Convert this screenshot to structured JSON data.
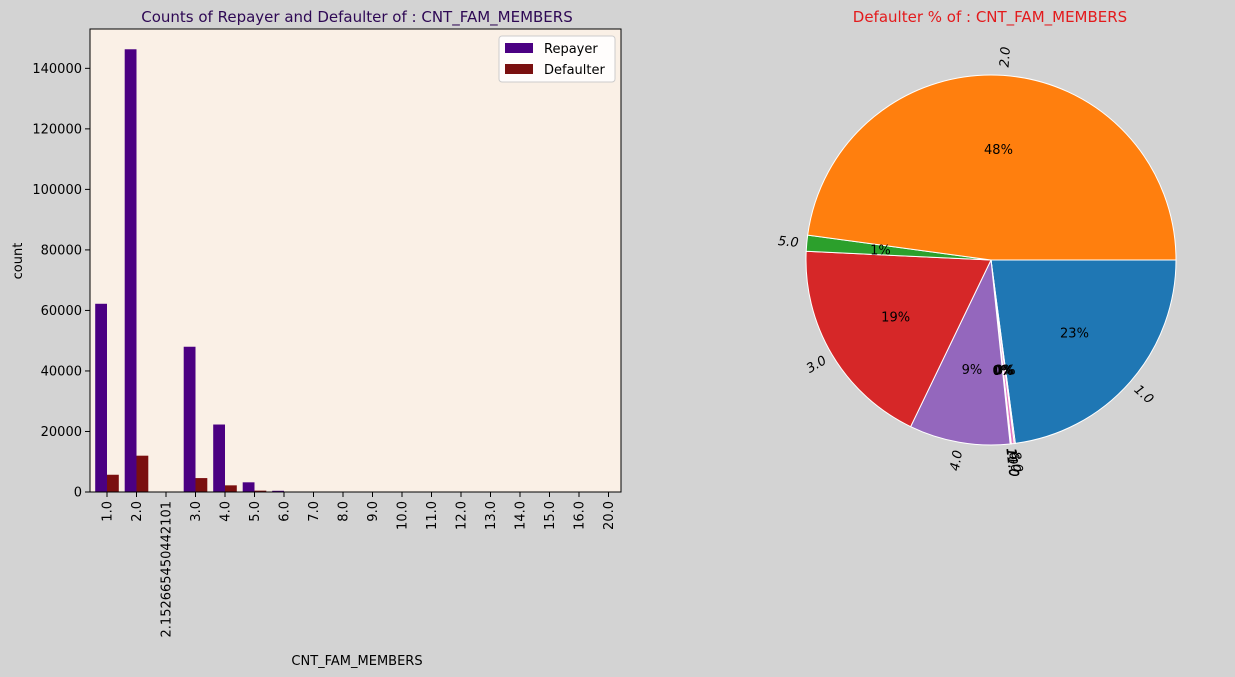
{
  "chart_data": [
    {
      "type": "bar",
      "title": "Counts of Repayer and Defaulter of : CNT_FAM_MEMBERS",
      "xlabel": "CNT_FAM_MEMBERS",
      "ylabel": "count",
      "categories": [
        "1.0",
        "2.0",
        "2.152665450442101",
        "3.0",
        "4.0",
        "5.0",
        "6.0",
        "7.0",
        "8.0",
        "9.0",
        "10.0",
        "11.0",
        "12.0",
        "13.0",
        "14.0",
        "15.0",
        "16.0",
        "20.0"
      ],
      "series": [
        {
          "name": "Repayer",
          "color": "#4b0082",
          "values": [
            62200,
            146300,
            2,
            48000,
            22300,
            3200,
            400,
            70,
            18,
            6,
            3,
            1,
            2,
            0,
            2,
            1,
            2,
            2
          ]
        },
        {
          "name": "Defaulter",
          "color": "#7a0f0f",
          "values": [
            5700,
            12000,
            0,
            4600,
            2200,
            450,
            60,
            10,
            2,
            2,
            0,
            1,
            0,
            1,
            0,
            0,
            0,
            0
          ]
        }
      ],
      "ylim": [
        0,
        153000
      ],
      "yticks": [
        0,
        20000,
        40000,
        60000,
        80000,
        100000,
        120000,
        140000
      ],
      "legend": "top-right",
      "grid": false,
      "background": "#faf0e6",
      "title_color": "#2e0854"
    },
    {
      "type": "pie",
      "title": "Defaulter % of : CNT_FAM_MEMBERS",
      "title_color": "#e31a1c",
      "slices": [
        {
          "label": "1.0",
          "value": 22.9,
          "pct": "23%",
          "color": "#1f77b4"
        },
        {
          "label": "8.0",
          "value": 0.1,
          "pct": "0%",
          "color": "#8c564b"
        },
        {
          "label": "6.0",
          "value": 0.25,
          "pct": "0%",
          "color": "#e377c2"
        },
        {
          "label": "10.0",
          "value": 0.05,
          "pct": "0%",
          "color": "#7f7f7f"
        },
        {
          "label": "11.0",
          "value": 0.05,
          "pct": "0%",
          "color": "#bcbd22"
        },
        {
          "label": "4.0",
          "value": 8.8,
          "pct": "9%",
          "color": "#9467bd"
        },
        {
          "label": "3.0",
          "value": 18.6,
          "pct": "19%",
          "color": "#d62728"
        },
        {
          "label": "5.0",
          "value": 1.4,
          "pct": "1%",
          "color": "#2ca02c"
        },
        {
          "label": "2.0",
          "value": 47.85,
          "pct": "48%",
          "color": "#ff7f0e"
        }
      ]
    }
  ]
}
